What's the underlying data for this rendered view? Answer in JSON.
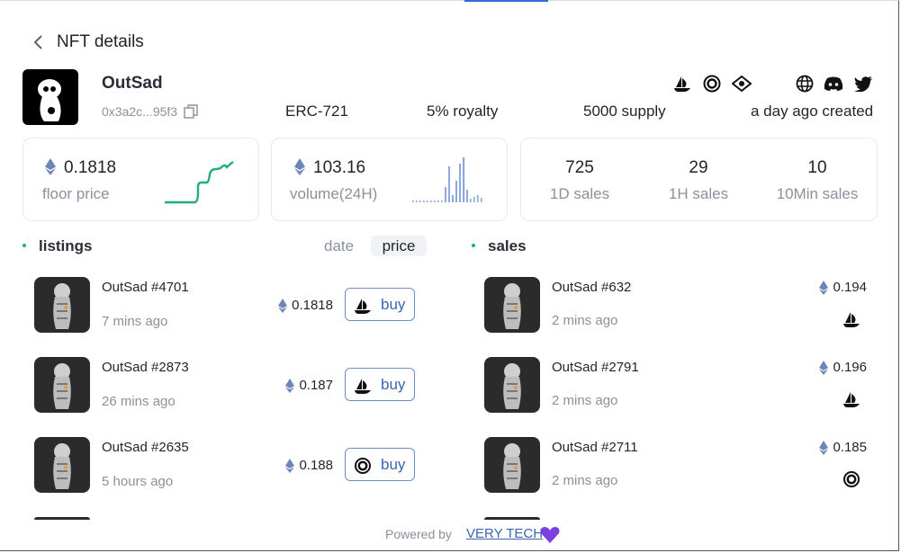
{
  "header": {
    "title": "NFT details"
  },
  "collection": {
    "name": "OutSad",
    "address": "0x3a2c...95f3",
    "standard": "ERC-721",
    "royalty": "5% royalty",
    "supply": "5000 supply",
    "created": "a day ago created"
  },
  "stats": {
    "floor": {
      "value": "0.1818",
      "label": "floor price"
    },
    "volume": {
      "value": "103.16",
      "label": "volume(24H)"
    },
    "sales": [
      {
        "value": "725",
        "label": "1D sales"
      },
      {
        "value": "29",
        "label": "1H sales"
      },
      {
        "value": "10",
        "label": "10Min sales"
      }
    ]
  },
  "tabs": {
    "listings": "listings",
    "date": "date",
    "price": "price",
    "sales": "sales"
  },
  "listings": [
    {
      "name": "OutSad #4701",
      "time": "7 mins ago",
      "price": "0.1818",
      "action": "buy"
    },
    {
      "name": "OutSad #2873",
      "time": "26 mins ago",
      "price": "0.187",
      "action": "buy"
    },
    {
      "name": "OutSad #2635",
      "time": "5 hours ago",
      "price": "0.188",
      "action": "buy"
    }
  ],
  "sales": [
    {
      "name": "OutSad #632",
      "time": "2 mins ago",
      "price": "0.194"
    },
    {
      "name": "OutSad #2791",
      "time": "2 mins ago",
      "price": "0.196"
    },
    {
      "name": "OutSad #2711",
      "time": "2 mins ago",
      "price": "0.185"
    }
  ],
  "footer": {
    "powered": "Powered by",
    "link": "VERY TECH"
  }
}
